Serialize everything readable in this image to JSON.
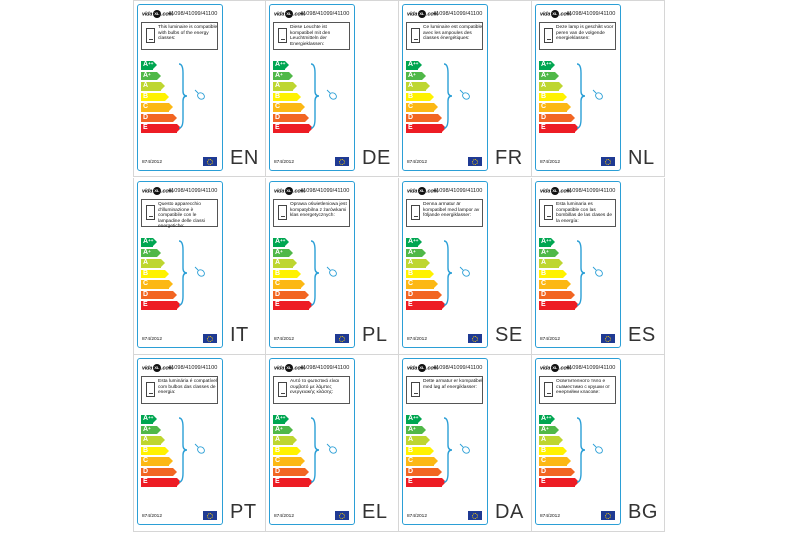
{
  "brand": {
    "pre": "vida",
    "mark": "XL",
    "post": ".com"
  },
  "product_codes": "41098/41099/41100",
  "regulation": "874/2012",
  "classes": [
    {
      "base": "A",
      "sup": "++",
      "color": "#00a651"
    },
    {
      "base": "A",
      "sup": "+",
      "color": "#50b848"
    },
    {
      "base": "A",
      "sup": "",
      "color": "#bed630"
    },
    {
      "base": "B",
      "sup": "",
      "color": "#fff200"
    },
    {
      "base": "C",
      "sup": "",
      "color": "#fcb814"
    },
    {
      "base": "D",
      "sup": "",
      "color": "#f26522"
    },
    {
      "base": "E",
      "sup": "",
      "color": "#ed1c24"
    }
  ],
  "colors": {
    "frame": "#2b9fd6",
    "eu_flag": "#1f3a93",
    "eu_stars": "#ffd200"
  },
  "icons": [
    "bulb-box-icon",
    "brace-icon",
    "lamp-icon",
    "eu-flag-icon"
  ],
  "labels": [
    {
      "lang": "EN",
      "text": "This luminaire is compatible with bulbs of the energy classes:"
    },
    {
      "lang": "DE",
      "text": "Diese Leuchte ist kompatibel mit den Leuchtmitteln der Energieklassen:"
    },
    {
      "lang": "FR",
      "text": "Ce luminaire est compatible avec les ampoules des classes énergétiques:"
    },
    {
      "lang": "NL",
      "text": "Deze lamp is geschikt voor peren van de volgende energieklassen:"
    },
    {
      "lang": "IT",
      "text": "Questo apparecchio d'illuminazione è compatibile con le lampadine delle classi energetiche:"
    },
    {
      "lang": "PL",
      "text": "Oprawa oświetleniowa jest kompatybilna z żarówkami klas energetycznych:"
    },
    {
      "lang": "SE",
      "text": "Denna armatur är kompatibel med lampor av följande energiklasser:"
    },
    {
      "lang": "ES",
      "text": "Esta luminaria es compatible con las bombillas de las clases de la energía:"
    },
    {
      "lang": "PT",
      "text": "Esta luminária é compatível com bulbos das classes de energia:"
    },
    {
      "lang": "EL",
      "text": "Αυτό το φωτιστικό είναι συμβατό με λάμπες ενεργειακής κλάσης:"
    },
    {
      "lang": "DA",
      "text": "Dette armatur er kompatibel med løg af energiklasser:"
    },
    {
      "lang": "BG",
      "text": "Осветителното тяло е съвместимо с крушки от енергийни класове:"
    }
  ]
}
